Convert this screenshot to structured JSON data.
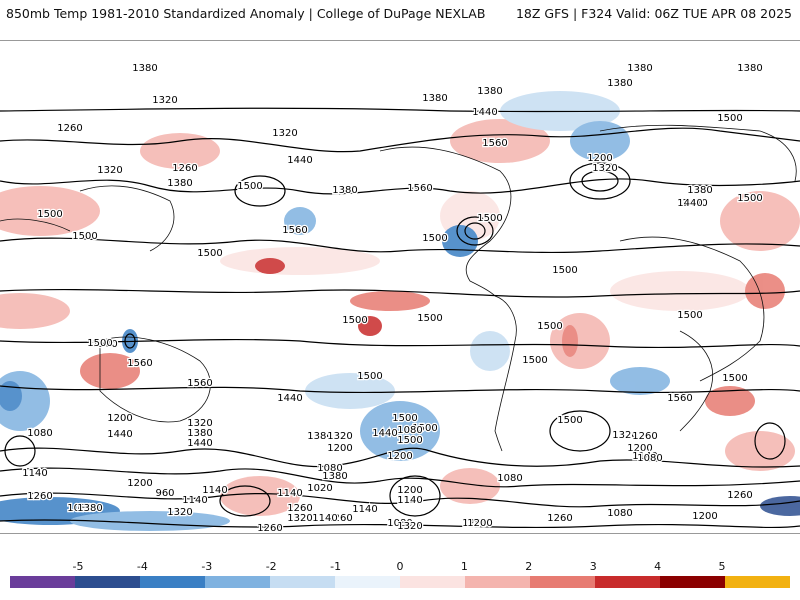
{
  "header": {
    "title_left": "850mb Temp 1981-2010 Standardized Anomaly | College of DuPage NEXLAB",
    "title_right": "18Z GFS | F324 Valid: 06Z TUE APR 08 2025"
  },
  "map": {
    "contour_labels": [
      "1380",
      "1380",
      "1380",
      "1380",
      "1320",
      "1380",
      "1380",
      "1440",
      "1260",
      "1320",
      "1560",
      "1500",
      "1320",
      "1260",
      "1380",
      "1440",
      "1380",
      "1200",
      "1320",
      "1440",
      "1500",
      "1500",
      "1500",
      "1380",
      "1560",
      "1560",
      "1500",
      "1500",
      "1380",
      "1440",
      "1500",
      "1500",
      "1500",
      "1500",
      "1500",
      "1500",
      "1500",
      "1500",
      "1500",
      "1500",
      "1560",
      "1560",
      "1500",
      "1500",
      "1500",
      "1560",
      "1440",
      "1440",
      "1500",
      "1500",
      "1320",
      "1200",
      "1080",
      "1440",
      "1380",
      "1440",
      "1380",
      "1320",
      "1200",
      "1080",
      "1020",
      "1380",
      "1500",
      "1200",
      "1080",
      "1260",
      "1320",
      "1260",
      "1140",
      "1140",
      "1080",
      "1260",
      "1200",
      "960",
      "1140",
      "1140",
      "1200",
      "1140",
      "1080",
      "1320",
      "1260",
      "1200",
      "1140",
      "1080",
      "1260",
      "1080",
      "1260",
      "1200",
      "1200",
      "1140",
      "1320",
      "1080",
      "1140",
      "1260",
      "1200",
      "1380",
      "1320"
    ]
  },
  "colorbar": {
    "ticks": [
      "-5",
      "-4",
      "-3",
      "-2",
      "-1",
      "0",
      "1",
      "2",
      "3",
      "4",
      "5"
    ],
    "colors": [
      "#6a3d9a",
      "#2c4d8f",
      "#3a7fc4",
      "#7fb2e0",
      "#c6ddf2",
      "#eaf3fb",
      "#fbe3e1",
      "#f4b4ae",
      "#e77b72",
      "#c82b2b",
      "#8b0000",
      "#f2b111"
    ]
  }
}
